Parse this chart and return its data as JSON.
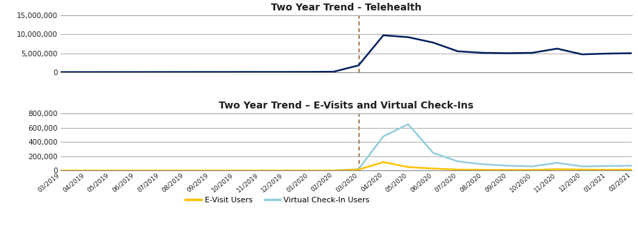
{
  "title1": "Two Year Trend - Telehealth",
  "title2": "Two Year Trend – E-Visits and Virtual Check-Ins",
  "x_labels": [
    "03/2019",
    "04/2019",
    "05/2019",
    "06/2019",
    "07/2019",
    "08/2019",
    "09/2019",
    "10/2019",
    "11/2019",
    "12/2019",
    "01/2020",
    "02/2020",
    "03/2020",
    "04/2020",
    "05/2020",
    "06/2020",
    "07/2020",
    "08/2020",
    "09/2020",
    "10/2020",
    "11/2020",
    "12/2020",
    "01/2021",
    "02/2021"
  ],
  "telehealth": [
    50000,
    55000,
    60000,
    65000,
    70000,
    75000,
    80000,
    85000,
    90000,
    95000,
    100000,
    150000,
    1800000,
    9700000,
    9200000,
    7800000,
    5500000,
    5100000,
    5000000,
    5100000,
    6200000,
    4700000,
    4900000,
    5000000
  ],
  "evisit": [
    2000,
    2000,
    2000,
    2000,
    2000,
    2000,
    2000,
    2000,
    2000,
    2000,
    2000,
    2000,
    15000,
    120000,
    50000,
    30000,
    15000,
    12000,
    10000,
    10000,
    20000,
    15000,
    12000,
    15000
  ],
  "virtual_checkin": [
    2000,
    2000,
    2000,
    2000,
    2000,
    2000,
    2000,
    2000,
    2000,
    2000,
    2000,
    2000,
    20000,
    480000,
    650000,
    250000,
    130000,
    90000,
    70000,
    60000,
    110000,
    60000,
    65000,
    70000
  ],
  "vline_idx": 12,
  "telehealth_color": "#002060",
  "evisit_color": "#FFC000",
  "virtual_checkin_color": "#92CDDC",
  "vline_color": "#7B3F00",
  "grid_color": "#AAAAAA",
  "axis_line_color": "#888888",
  "title_color": "#1F1F1F",
  "tick_color": "#1F1F1F",
  "ylim1": [
    0,
    15000000
  ],
  "ylim2": [
    0,
    800000
  ],
  "yticks1": [
    0,
    5000000,
    10000000,
    15000000
  ],
  "yticks2": [
    0,
    200000,
    400000,
    600000,
    800000
  ],
  "legend_evisit": "E-Visit Users",
  "legend_virtual": "Virtual Check-In Users"
}
